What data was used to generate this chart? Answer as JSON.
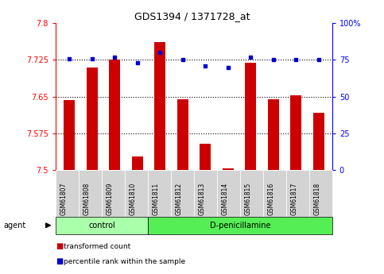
{
  "title": "GDS1394 / 1371728_at",
  "samples": [
    "GSM61807",
    "GSM61808",
    "GSM61809",
    "GSM61810",
    "GSM61811",
    "GSM61812",
    "GSM61813",
    "GSM61814",
    "GSM61815",
    "GSM61816",
    "GSM61817",
    "GSM61818"
  ],
  "red_values": [
    7.643,
    7.71,
    7.725,
    7.527,
    7.762,
    7.645,
    7.554,
    7.503,
    7.72,
    7.645,
    7.653,
    7.617
  ],
  "blue_values": [
    76,
    76,
    77,
    73,
    80,
    75,
    71,
    70,
    77,
    75,
    75,
    75
  ],
  "ylim_left": [
    7.5,
    7.8
  ],
  "ylim_right": [
    0,
    100
  ],
  "yticks_left": [
    7.5,
    7.575,
    7.65,
    7.725,
    7.8
  ],
  "yticks_right": [
    0,
    25,
    50,
    75,
    100
  ],
  "ytick_labels_left": [
    "7.5",
    "7.575",
    "7.65",
    "7.725",
    "7.8"
  ],
  "ytick_labels_right": [
    "0",
    "25",
    "50",
    "75",
    "100%"
  ],
  "hlines": [
    7.725,
    7.65,
    7.575
  ],
  "n_control": 4,
  "n_total": 12,
  "bar_color": "#cc0000",
  "dot_color": "#0000cc",
  "control_bg": "#aaffaa",
  "dpen_bg": "#55ee55",
  "tick_box_bg": "#d3d3d3",
  "legend_red_label": "transformed count",
  "legend_blue_label": "percentile rank within the sample",
  "agent_label": "agent",
  "control_label": "control",
  "dpen_label": "D-penicillamine",
  "bar_width": 0.5
}
